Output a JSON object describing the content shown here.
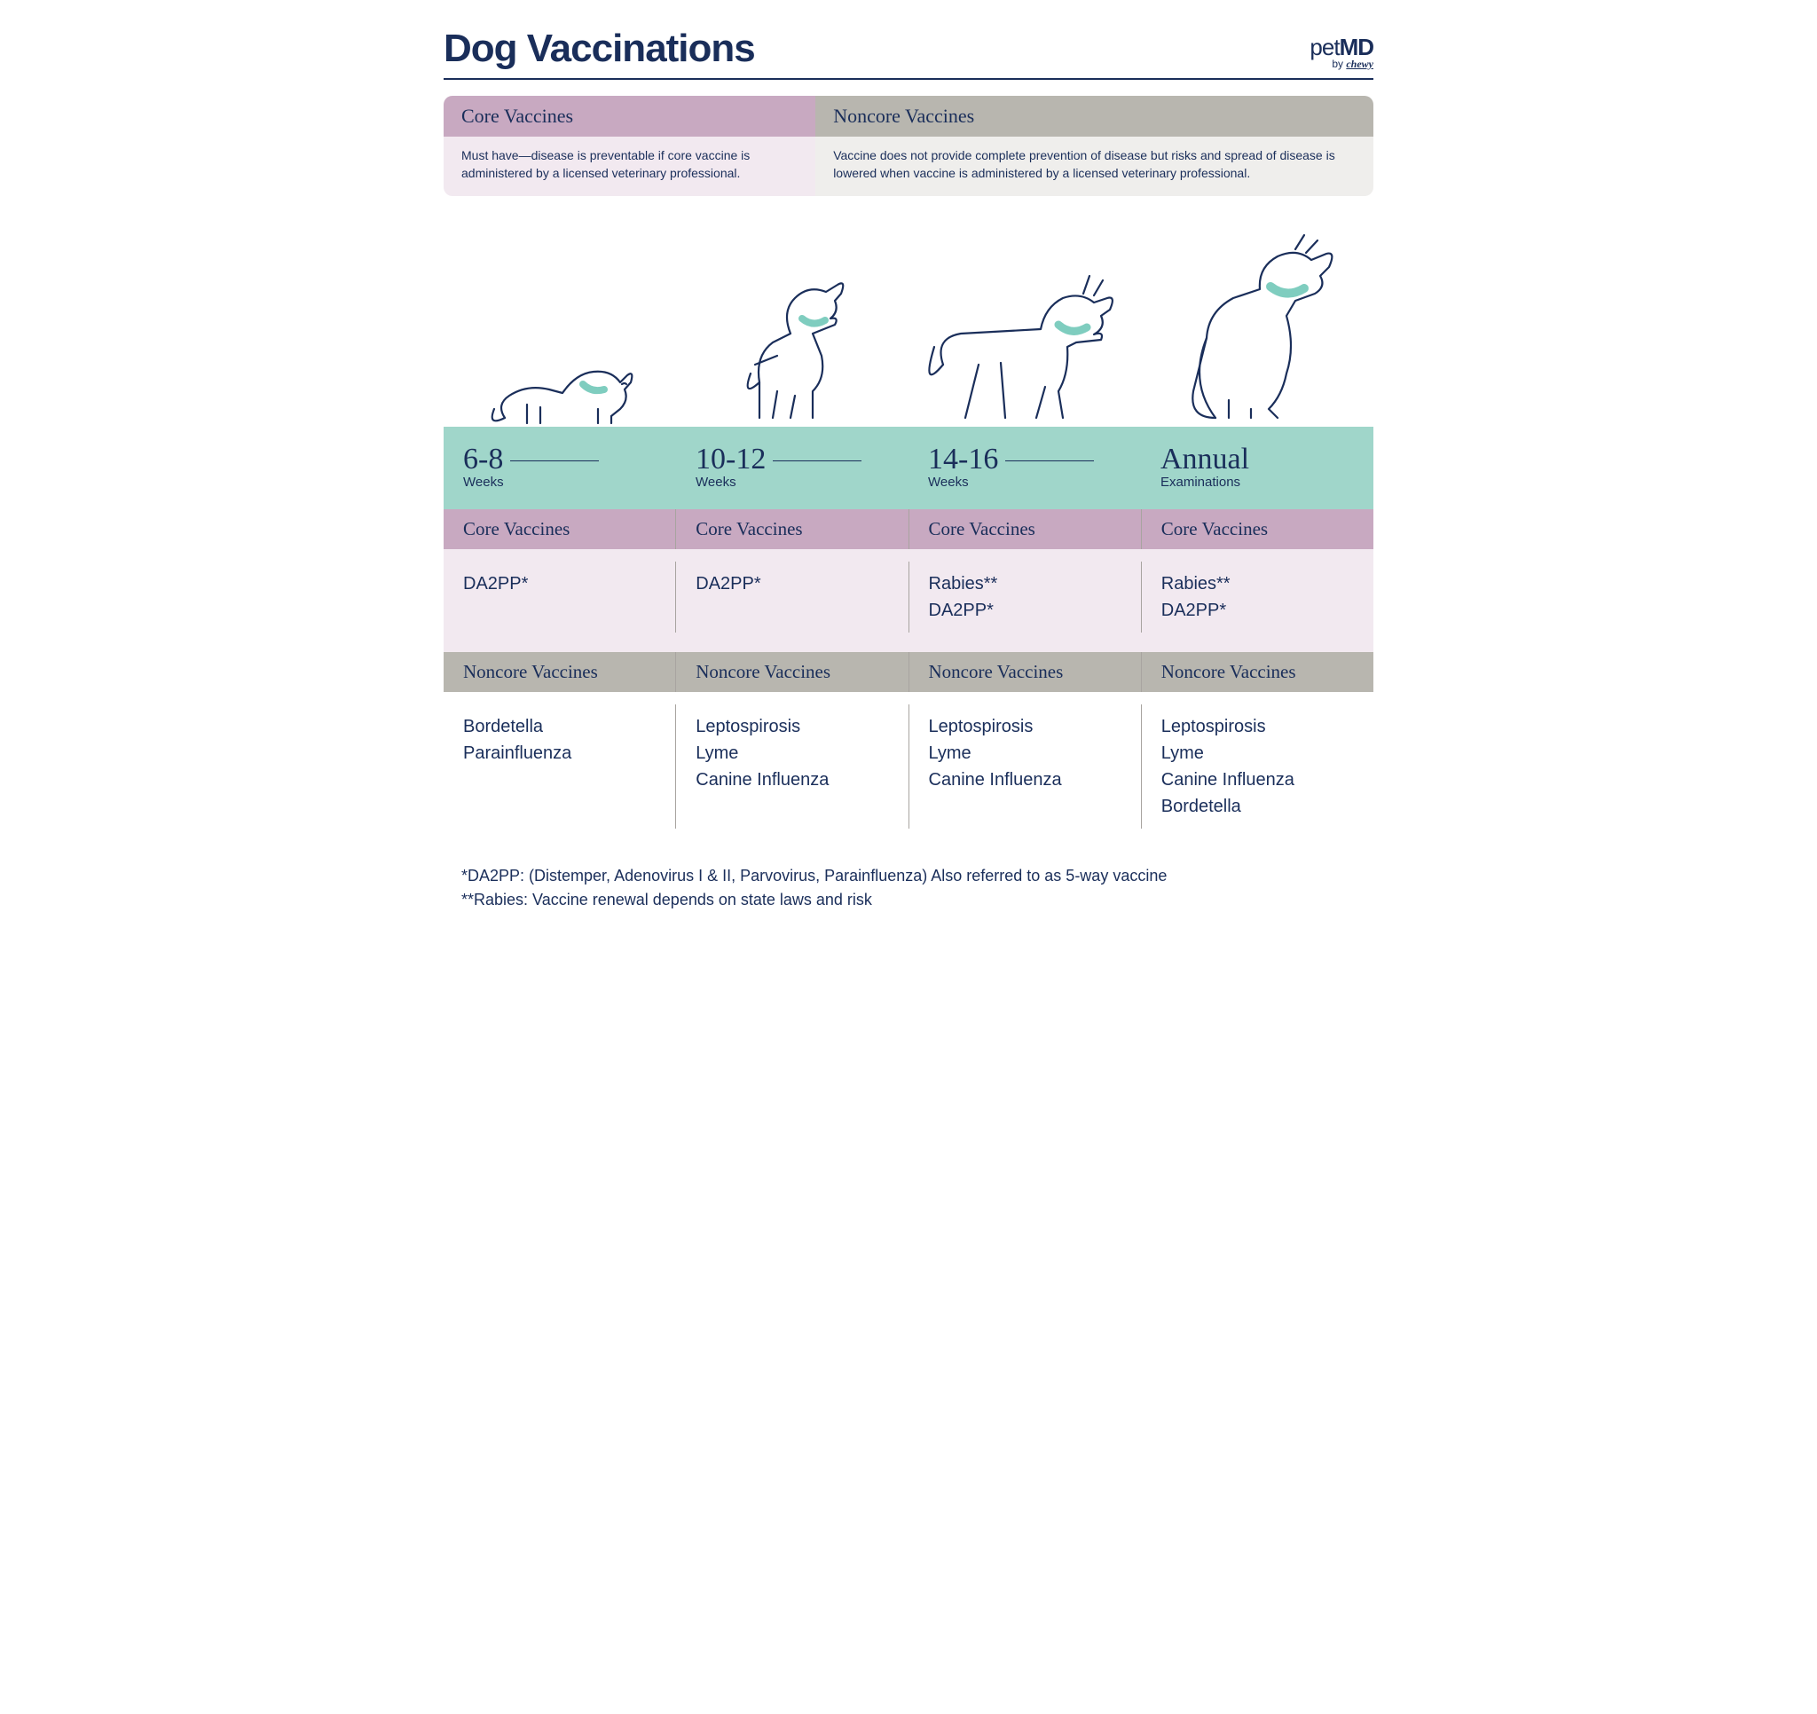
{
  "title": "Dog Vaccinations",
  "logo": {
    "line1_a": "pet",
    "line1_b": "MD",
    "line2_prefix": "by ",
    "line2_brand": "chewy"
  },
  "intro": {
    "core": {
      "title": "Core Vaccines",
      "desc": "Must have—disease is preventable if core vaccine is administered by a licensed veterinary professional.",
      "head_bg": "#c8a9c1",
      "body_bg": "#f2e9f0"
    },
    "noncore": {
      "title": "Noncore Vaccines",
      "desc": "Vaccine does not provide complete prevention of disease but risks and spread of disease is lowered when vaccine is administered by a licensed veterinary professional.",
      "head_bg": "#b8b6af",
      "body_bg": "#efeeec"
    }
  },
  "labels": {
    "core": "Core Vaccines",
    "noncore": "Noncore Vaccines"
  },
  "stages": [
    {
      "heading": "6-8",
      "sub": "Weeks",
      "line": true,
      "core": "DA2PP*",
      "noncore": "Bordetella\nParainfluenza"
    },
    {
      "heading": "10-12",
      "sub": "Weeks",
      "line": true,
      "core": "DA2PP*",
      "noncore": "Leptospirosis\nLyme\nCanine Influenza"
    },
    {
      "heading": "14-16",
      "sub": "Weeks",
      "line": true,
      "core": "Rabies**\nDA2PP*",
      "noncore": "Leptospirosis\nLyme\nCanine Influenza"
    },
    {
      "heading": "Annual",
      "sub": "Examinations",
      "line": false,
      "core": "Rabies**\nDA2PP*",
      "noncore": "Leptospirosis\nLyme\nCanine Influenza\nBordetella"
    }
  ],
  "footnotes": [
    "*DA2PP: (Distemper, Adenovirus I & II, Parvovirus, Parainfluenza) Also referred to as 5-way vaccine",
    "**Rabies: Vaccine renewal depends on state laws and risk"
  ],
  "colors": {
    "navy": "#1a2e5a",
    "teal": "#a0d6ca",
    "collar": "#7fcdbf",
    "mauve": "#c8a9c1",
    "mauve_lighter": "#f2e9f0",
    "grey": "#b8b6af",
    "grey_light": "#efeeec",
    "divider": "#a8a4a0"
  }
}
